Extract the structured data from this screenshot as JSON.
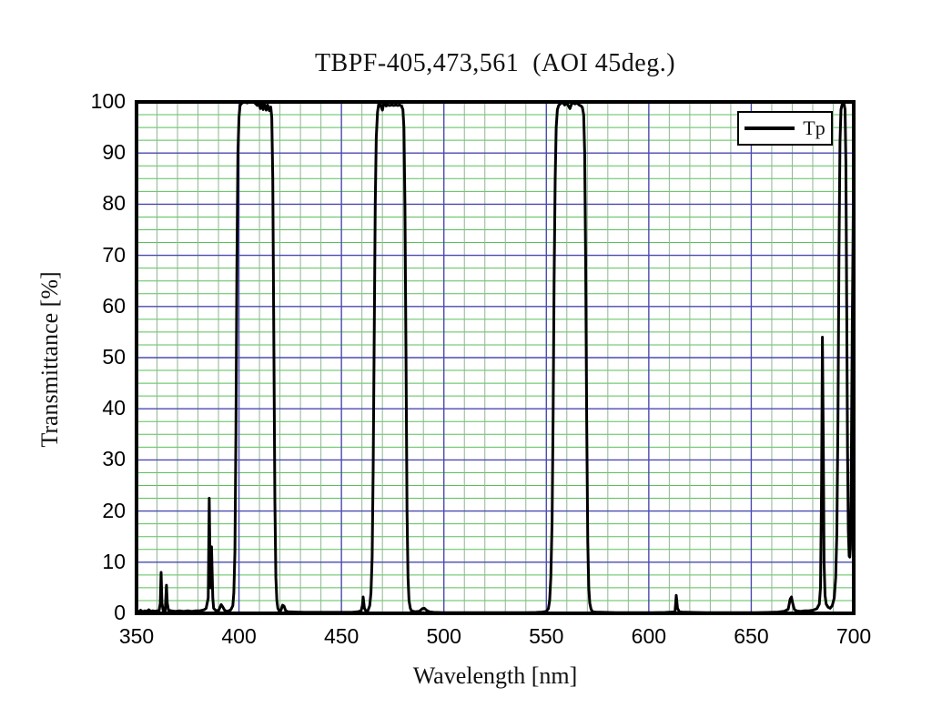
{
  "colors": {
    "background": "#ffffff",
    "minor_grid_h": "#58c158",
    "minor_grid_v": "#8fb691",
    "major_grid": "#4a4ab0",
    "curve": "#000000",
    "frame": "#000000",
    "text": "#111111"
  },
  "chart_data": {
    "type": "line",
    "title": "TBPF-405,473,561  (AOI 45deg.)",
    "xlabel": "Wavelength [nm]",
    "ylabel": "Transmittance [%]",
    "xlim": [
      350,
      700
    ],
    "ylim": [
      0,
      100
    ],
    "x_ticks": [
      350,
      400,
      450,
      500,
      550,
      600,
      650,
      700
    ],
    "y_ticks": [
      0,
      10,
      20,
      30,
      40,
      50,
      60,
      70,
      80,
      90,
      100
    ],
    "grid": {
      "minor_x_step": 10,
      "major_x_step": 50,
      "minor_y_step": 2.5,
      "major_y_step": 10,
      "grid_on": true
    },
    "legend": {
      "position": "top-right",
      "entries": [
        {
          "label": "Tp",
          "color": "#000000"
        }
      ]
    },
    "passbands_nm_approx": [
      [
        399,
        418
      ],
      [
        465,
        483
      ],
      [
        552,
        571
      ]
    ],
    "series": [
      {
        "name": "Tp",
        "color": "#000000",
        "points": [
          [
            350,
            0.4
          ],
          [
            351,
            0.3
          ],
          [
            352,
            0.6
          ],
          [
            353,
            0.3
          ],
          [
            354,
            0.5
          ],
          [
            355,
            0.4
          ],
          [
            356,
            0.7
          ],
          [
            357,
            0.4
          ],
          [
            358,
            0.5
          ],
          [
            359,
            0.4
          ],
          [
            360,
            0.5
          ],
          [
            361,
            0.5
          ],
          [
            361.6,
            2
          ],
          [
            362,
            8
          ],
          [
            362.4,
            2
          ],
          [
            363,
            0.5
          ],
          [
            364,
            0.5
          ],
          [
            364.6,
            5.5
          ],
          [
            365,
            2
          ],
          [
            365.6,
            0.6
          ],
          [
            367,
            0.5
          ],
          [
            369,
            0.4
          ],
          [
            371,
            0.5
          ],
          [
            373,
            0.4
          ],
          [
            375,
            0.5
          ],
          [
            377,
            0.4
          ],
          [
            379,
            0.5
          ],
          [
            381,
            0.5
          ],
          [
            383,
            0.7
          ],
          [
            384,
            1
          ],
          [
            385,
            3
          ],
          [
            385.5,
            22.5
          ],
          [
            386,
            5
          ],
          [
            386.6,
            13
          ],
          [
            387.2,
            3
          ],
          [
            387.6,
            1
          ],
          [
            388.5,
            0.6
          ],
          [
            390,
            0.5
          ],
          [
            391.3,
            1.7
          ],
          [
            392,
            1.3
          ],
          [
            393,
            0.6
          ],
          [
            394,
            0.4
          ],
          [
            395,
            0.5
          ],
          [
            396,
            0.7
          ],
          [
            397,
            1.5
          ],
          [
            397.5,
            4
          ],
          [
            398,
            12
          ],
          [
            398.5,
            35
          ],
          [
            399,
            68
          ],
          [
            399.5,
            90
          ],
          [
            400,
            97
          ],
          [
            400.5,
            99.2
          ],
          [
            401,
            99.6
          ],
          [
            402,
            99.9
          ],
          [
            403,
            100
          ],
          [
            404,
            99.8
          ],
          [
            405,
            100
          ],
          [
            406,
            99.9
          ],
          [
            407,
            100
          ],
          [
            408,
            99.7
          ],
          [
            409,
            99.3
          ],
          [
            409.7,
            99.9
          ],
          [
            410.4,
            98.7
          ],
          [
            411,
            99.8
          ],
          [
            411.8,
            98.5
          ],
          [
            412.5,
            99.6
          ],
          [
            413.3,
            98.4
          ],
          [
            414,
            99.4
          ],
          [
            414.8,
            98.3
          ],
          [
            415.5,
            99
          ],
          [
            416,
            97
          ],
          [
            416.5,
            85
          ],
          [
            417,
            55
          ],
          [
            417.5,
            22
          ],
          [
            418,
            7
          ],
          [
            418.5,
            2.5
          ],
          [
            419,
            1
          ],
          [
            419.6,
            0.5
          ],
          [
            420.5,
            0.6
          ],
          [
            421.3,
            1.6
          ],
          [
            422,
            1.4
          ],
          [
            422.8,
            0.5
          ],
          [
            424,
            0.3
          ],
          [
            428,
            0.25
          ],
          [
            432,
            0.2
          ],
          [
            438,
            0.2
          ],
          [
            444,
            0.2
          ],
          [
            450,
            0.2
          ],
          [
            455,
            0.2
          ],
          [
            458,
            0.3
          ],
          [
            459.6,
            0.5
          ],
          [
            460.2,
            1.5
          ],
          [
            460.6,
            3.2
          ],
          [
            461.2,
            1
          ],
          [
            462,
            0.4
          ],
          [
            463,
            0.6
          ],
          [
            463.8,
            1.5
          ],
          [
            464.4,
            4
          ],
          [
            465,
            11
          ],
          [
            465.5,
            28
          ],
          [
            466,
            55
          ],
          [
            466.5,
            80
          ],
          [
            467,
            93
          ],
          [
            467.6,
            98
          ],
          [
            468.2,
            99.6
          ],
          [
            468.8,
            100
          ],
          [
            469.4,
            99
          ],
          [
            470,
            98.4
          ],
          [
            470.6,
            99.6
          ],
          [
            471.2,
            100
          ],
          [
            471.8,
            99.2
          ],
          [
            472.5,
            99.4
          ],
          [
            473.5,
            99.3
          ],
          [
            474.5,
            99.4
          ],
          [
            475.5,
            99.3
          ],
          [
            476.5,
            99.4
          ],
          [
            477.5,
            99.3
          ],
          [
            478.5,
            99.4
          ],
          [
            479.3,
            99.2
          ],
          [
            480,
            98.5
          ],
          [
            480.5,
            95
          ],
          [
            481,
            80
          ],
          [
            481.5,
            50
          ],
          [
            482,
            20
          ],
          [
            482.5,
            7
          ],
          [
            483,
            2.5
          ],
          [
            483.6,
            1
          ],
          [
            484.2,
            0.5
          ],
          [
            486,
            0.3
          ],
          [
            488,
            0.4
          ],
          [
            489.5,
            0.9
          ],
          [
            490.5,
            1
          ],
          [
            491.5,
            0.6
          ],
          [
            493,
            0.3
          ],
          [
            495,
            0.2
          ],
          [
            500,
            0.15
          ],
          [
            505,
            0.15
          ],
          [
            510,
            0.15
          ],
          [
            515,
            0.15
          ],
          [
            520,
            0.15
          ],
          [
            525,
            0.15
          ],
          [
            530,
            0.15
          ],
          [
            535,
            0.15
          ],
          [
            540,
            0.15
          ],
          [
            545,
            0.18
          ],
          [
            548,
            0.25
          ],
          [
            550,
            0.4
          ],
          [
            551,
            0.9
          ],
          [
            551.6,
            2.5
          ],
          [
            552.2,
            7
          ],
          [
            552.8,
            18
          ],
          [
            553.3,
            38
          ],
          [
            553.8,
            65
          ],
          [
            554.3,
            85
          ],
          [
            554.8,
            95
          ],
          [
            555.4,
            98.5
          ],
          [
            556,
            99.3
          ],
          [
            557,
            99.7
          ],
          [
            558,
            99.9
          ],
          [
            559,
            99.4
          ],
          [
            560,
            99.8
          ],
          [
            560.8,
            99.2
          ],
          [
            561.5,
            98.7
          ],
          [
            562.2,
            99.5
          ],
          [
            563,
            99.9
          ],
          [
            564,
            99.6
          ],
          [
            565,
            99.8
          ],
          [
            566,
            99.4
          ],
          [
            567,
            99.2
          ],
          [
            567.6,
            98.9
          ],
          [
            568.2,
            97.5
          ],
          [
            568.7,
            90
          ],
          [
            569.2,
            68
          ],
          [
            569.7,
            38
          ],
          [
            570.2,
            14
          ],
          [
            570.7,
            5
          ],
          [
            571.2,
            2
          ],
          [
            571.8,
            0.8
          ],
          [
            572.5,
            0.4
          ],
          [
            574,
            0.25
          ],
          [
            578,
            0.2
          ],
          [
            584,
            0.15
          ],
          [
            590,
            0.15
          ],
          [
            596,
            0.15
          ],
          [
            602,
            0.15
          ],
          [
            608,
            0.18
          ],
          [
            611,
            0.25
          ],
          [
            612.8,
            0.4
          ],
          [
            613.4,
            3.5
          ],
          [
            614,
            1
          ],
          [
            614.8,
            0.4
          ],
          [
            616,
            0.25
          ],
          [
            622,
            0.18
          ],
          [
            628,
            0.15
          ],
          [
            634,
            0.15
          ],
          [
            640,
            0.15
          ],
          [
            646,
            0.15
          ],
          [
            652,
            0.15
          ],
          [
            658,
            0.18
          ],
          [
            663,
            0.25
          ],
          [
            666,
            0.4
          ],
          [
            668,
            0.8
          ],
          [
            669,
            2.8
          ],
          [
            669.6,
            3.2
          ],
          [
            670.2,
            2
          ],
          [
            671,
            0.8
          ],
          [
            672,
            0.5
          ],
          [
            674,
            0.4
          ],
          [
            676,
            0.5
          ],
          [
            678,
            0.5
          ],
          [
            680,
            0.6
          ],
          [
            682,
            0.9
          ],
          [
            683.2,
            1.8
          ],
          [
            683.8,
            5
          ],
          [
            684.3,
            25
          ],
          [
            684.7,
            54
          ],
          [
            685.1,
            35
          ],
          [
            685.5,
            10
          ],
          [
            686,
            3.5
          ],
          [
            686.6,
            1.8
          ],
          [
            687.5,
            1.2
          ],
          [
            688.5,
            1
          ],
          [
            689.5,
            1.5
          ],
          [
            690.5,
            3
          ],
          [
            691.2,
            7
          ],
          [
            691.8,
            16
          ],
          [
            692.3,
            38
          ],
          [
            692.8,
            70
          ],
          [
            693.3,
            92
          ],
          [
            693.8,
            98.5
          ],
          [
            694.4,
            99.6
          ],
          [
            695.2,
            99.8
          ],
          [
            695.8,
            98.5
          ],
          [
            696.2,
            88
          ],
          [
            696.6,
            60
          ],
          [
            697,
            32
          ],
          [
            697.4,
            16
          ],
          [
            697.8,
            11.2
          ],
          [
            698.1,
            11
          ],
          [
            698.4,
            13
          ],
          [
            698.7,
            22
          ],
          [
            699,
            38
          ],
          [
            699.3,
            56
          ],
          [
            699.6,
            70
          ],
          [
            699.8,
            79
          ],
          [
            700,
            84
          ]
        ]
      }
    ]
  }
}
